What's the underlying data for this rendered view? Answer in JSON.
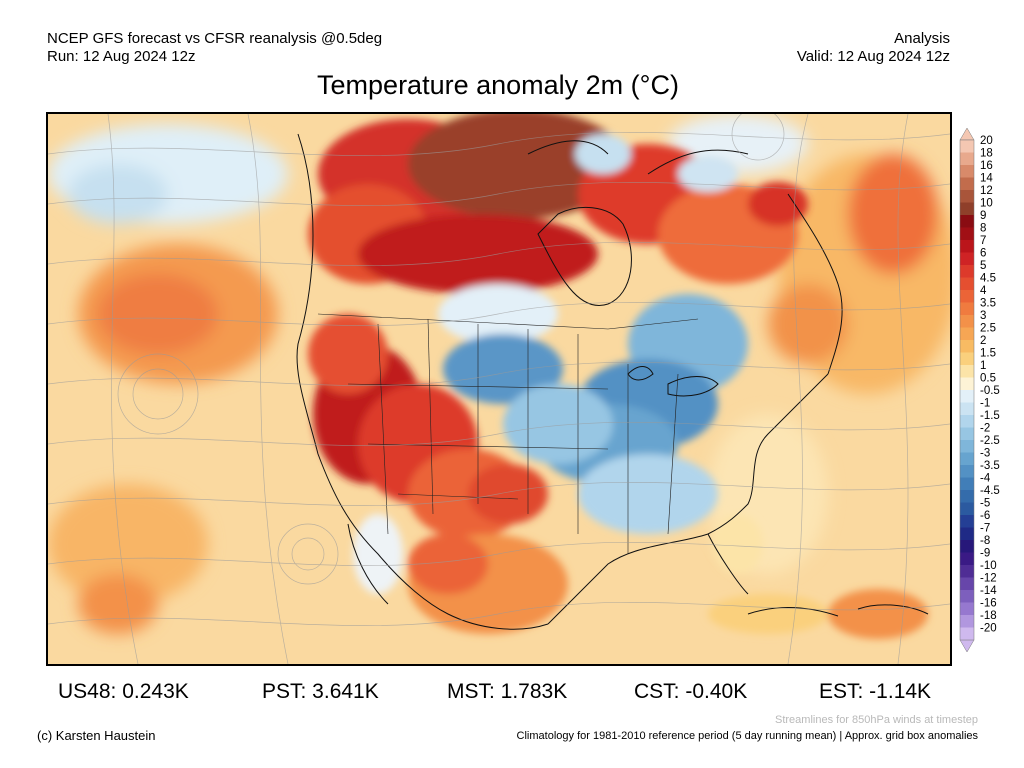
{
  "header": {
    "left_line1": "NCEP GFS forecast vs CFSR reanalysis @0.5deg",
    "left_line2": "Run: 12 Aug 2024 12z",
    "right_line1": "Analysis",
    "right_line2": "Valid: 12 Aug 2024 12z"
  },
  "title": "Temperature anomaly 2m (°C)",
  "colorbar": {
    "labels": [
      "20",
      "18",
      "16",
      "14",
      "12",
      "10",
      "9",
      "8",
      "7",
      "6",
      "5",
      "4.5",
      "4",
      "3.5",
      "3",
      "2.5",
      "2",
      "1.5",
      "1",
      "0.5",
      "-0.5",
      "-1",
      "-1.5",
      "-2",
      "-2.5",
      "-3",
      "-3.5",
      "-4",
      "-4.5",
      "-5",
      "-6",
      "-7",
      "-8",
      "-9",
      "-10",
      "-12",
      "-14",
      "-16",
      "-18",
      "-20"
    ],
    "colors": [
      "#f4c7b2",
      "#e8a98d",
      "#d88a6a",
      "#c26c4c",
      "#a9553a",
      "#8f3f2a",
      "#8a0c12",
      "#a10f15",
      "#bb151b",
      "#cf2325",
      "#dd3a2b",
      "#e54f30",
      "#eb6437",
      "#f07b3f",
      "#f39149",
      "#f6a654",
      "#f8bb63",
      "#fad07d",
      "#fce4a8",
      "#fdf3d6",
      "#e3f0f8",
      "#cbe3f2",
      "#b1d5ec",
      "#97c6e3",
      "#7fb6da",
      "#67a4cf",
      "#5391c4",
      "#417eb8",
      "#346cab",
      "#2b5aa0",
      "#243f95",
      "#1f2a86",
      "#27187a",
      "#3a1a85",
      "#4f2d95",
      "#6746aa",
      "#7d5fbd",
      "#9678cf",
      "#b197df",
      "#cfb9ee"
    ]
  },
  "stats": [
    {
      "id": "us48",
      "text": "US48: 0.243K"
    },
    {
      "id": "pst",
      "text": "PST: 3.641K"
    },
    {
      "id": "mst",
      "text": "MST: 1.783K"
    },
    {
      "id": "cst",
      "text": "CST: -0.40K"
    },
    {
      "id": "est",
      "text": "EST: -1.14K"
    }
  ],
  "footer": {
    "credit": "(c) Karsten Haustein",
    "streamline_note": "Streamlines for 850hPa winds at timestep",
    "climatology_note": "Climatology for 1981-2010 reference period (5 day running mean) | Approx. grid box anomalies"
  }
}
